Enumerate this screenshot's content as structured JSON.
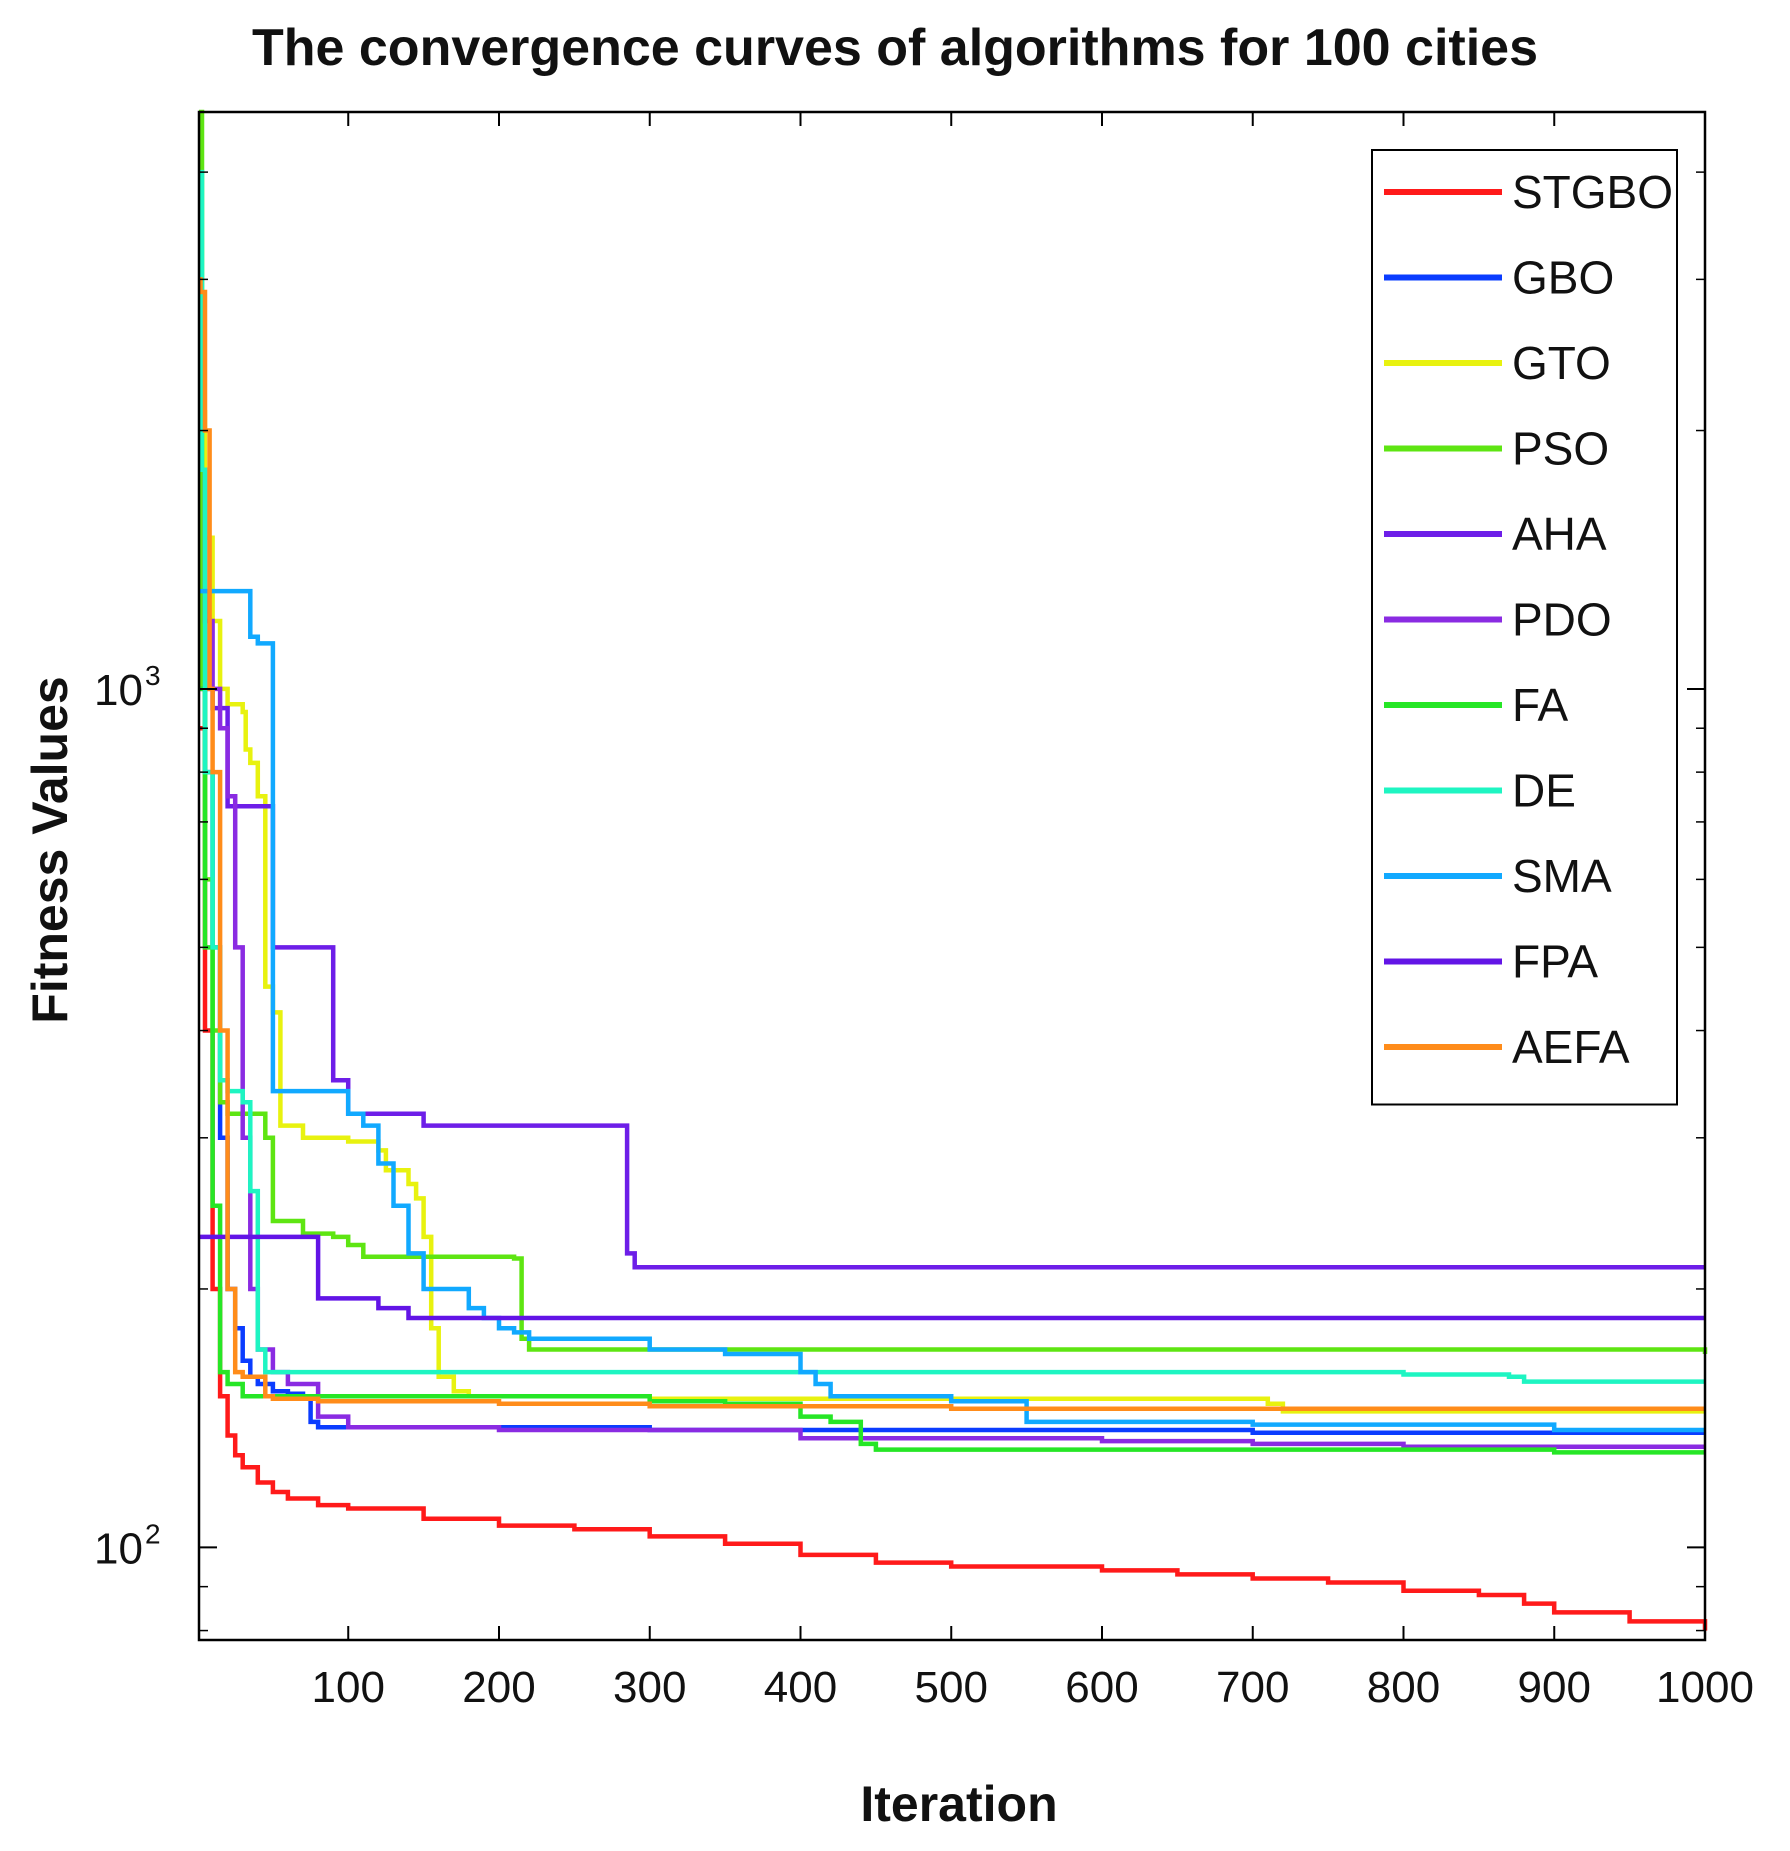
{
  "chart_data": {
    "type": "line",
    "title": "The convergence curves of algorithms for 100 cities",
    "xlabel": "Iteration",
    "ylabel": "Fitness Values",
    "xscale": "linear",
    "yscale": "log",
    "xlim": [
      1,
      1000
    ],
    "ylim": [
      78,
      4700
    ],
    "xticks": [
      100,
      200,
      300,
      400,
      500,
      600,
      700,
      800,
      900,
      1000
    ],
    "xtick_labels": [
      "100",
      "200",
      "300",
      "400",
      "500",
      "600",
      "700",
      "800",
      "900",
      "1000"
    ],
    "yticks": [
      100,
      1000
    ],
    "ytick_labels": [
      {
        "base": "10",
        "exp": "2"
      },
      {
        "base": "10",
        "exp": "3"
      }
    ],
    "grid": false,
    "legend_position": "top-right",
    "series": [
      {
        "name": "STGBO",
        "color": "#ff1a1a",
        "points": [
          [
            1,
            900
          ],
          [
            5,
            400
          ],
          [
            10,
            200
          ],
          [
            15,
            150
          ],
          [
            20,
            135
          ],
          [
            25,
            128
          ],
          [
            30,
            124
          ],
          [
            40,
            119
          ],
          [
            50,
            116
          ],
          [
            60,
            114
          ],
          [
            80,
            112
          ],
          [
            100,
            111
          ],
          [
            150,
            108
          ],
          [
            200,
            106
          ],
          [
            250,
            105
          ],
          [
            300,
            103
          ],
          [
            350,
            101
          ],
          [
            400,
            98
          ],
          [
            450,
            96
          ],
          [
            500,
            95
          ],
          [
            600,
            94
          ],
          [
            650,
            93
          ],
          [
            700,
            92
          ],
          [
            750,
            91
          ],
          [
            800,
            89
          ],
          [
            850,
            88
          ],
          [
            880,
            86
          ],
          [
            900,
            84
          ],
          [
            950,
            82
          ],
          [
            1000,
            80
          ]
        ]
      },
      {
        "name": "GBO",
        "color": "#0a3cff",
        "points": [
          [
            1,
            1300
          ],
          [
            5,
            800
          ],
          [
            10,
            500
          ],
          [
            15,
            300
          ],
          [
            20,
            200
          ],
          [
            25,
            180
          ],
          [
            30,
            165
          ],
          [
            35,
            158
          ],
          [
            40,
            155
          ],
          [
            50,
            152
          ],
          [
            60,
            151
          ],
          [
            70,
            150
          ],
          [
            75,
            140
          ],
          [
            80,
            138
          ],
          [
            100,
            138
          ],
          [
            200,
            138
          ],
          [
            300,
            137
          ],
          [
            500,
            137
          ],
          [
            700,
            136
          ],
          [
            1000,
            136
          ]
        ]
      },
      {
        "name": "GTO",
        "color": "#e8f20f",
        "points": [
          [
            1,
            2100
          ],
          [
            5,
            1500
          ],
          [
            10,
            1200
          ],
          [
            15,
            1000
          ],
          [
            20,
            960
          ],
          [
            25,
            960
          ],
          [
            28,
            960
          ],
          [
            30,
            940
          ],
          [
            32,
            850
          ],
          [
            35,
            820
          ],
          [
            40,
            750
          ],
          [
            45,
            450
          ],
          [
            50,
            420
          ],
          [
            55,
            310
          ],
          [
            70,
            300
          ],
          [
            80,
            300
          ],
          [
            100,
            297
          ],
          [
            120,
            290
          ],
          [
            125,
            275
          ],
          [
            140,
            265
          ],
          [
            145,
            255
          ],
          [
            150,
            230
          ],
          [
            155,
            180
          ],
          [
            160,
            158
          ],
          [
            170,
            152
          ],
          [
            180,
            150
          ],
          [
            300,
            149
          ],
          [
            500,
            149
          ],
          [
            700,
            149
          ],
          [
            710,
            147
          ],
          [
            720,
            144
          ],
          [
            1000,
            144
          ]
        ]
      },
      {
        "name": "PSO",
        "color": "#5ee512",
        "points": [
          [
            1,
            4700
          ],
          [
            3,
            1000
          ],
          [
            5,
            600
          ],
          [
            10,
            400
          ],
          [
            15,
            330
          ],
          [
            20,
            320
          ],
          [
            40,
            320
          ],
          [
            45,
            300
          ],
          [
            50,
            240
          ],
          [
            70,
            232
          ],
          [
            90,
            230
          ],
          [
            100,
            225
          ],
          [
            110,
            218
          ],
          [
            150,
            218
          ],
          [
            200,
            218
          ],
          [
            210,
            217
          ],
          [
            215,
            175
          ],
          [
            220,
            170
          ],
          [
            500,
            170
          ],
          [
            1000,
            168
          ]
        ]
      },
      {
        "name": "AHA",
        "color": "#6d1ee8",
        "points": [
          [
            1,
            1000
          ],
          [
            10,
            950
          ],
          [
            20,
            730
          ],
          [
            30,
            730
          ],
          [
            40,
            730
          ],
          [
            45,
            730
          ],
          [
            50,
            500
          ],
          [
            80,
            500
          ],
          [
            90,
            350
          ],
          [
            100,
            320
          ],
          [
            140,
            320
          ],
          [
            150,
            310
          ],
          [
            200,
            310
          ],
          [
            280,
            310
          ],
          [
            285,
            220
          ],
          [
            290,
            212
          ],
          [
            500,
            212
          ],
          [
            1000,
            212
          ]
        ]
      },
      {
        "name": "PDO",
        "color": "#8a2be2",
        "points": [
          [
            1,
            1800
          ],
          [
            5,
            1200
          ],
          [
            10,
            1000
          ],
          [
            15,
            900
          ],
          [
            20,
            750
          ],
          [
            25,
            500
          ],
          [
            30,
            300
          ],
          [
            35,
            200
          ],
          [
            40,
            170
          ],
          [
            50,
            160
          ],
          [
            60,
            155
          ],
          [
            80,
            142
          ],
          [
            100,
            138
          ],
          [
            200,
            137
          ],
          [
            300,
            137
          ],
          [
            400,
            134
          ],
          [
            500,
            134
          ],
          [
            600,
            133
          ],
          [
            700,
            132
          ],
          [
            800,
            131
          ],
          [
            900,
            131
          ],
          [
            1000,
            131
          ]
        ]
      },
      {
        "name": "FA",
        "color": "#26e626",
        "points": [
          [
            1,
            1000
          ],
          [
            5,
            500
          ],
          [
            10,
            250
          ],
          [
            15,
            160
          ],
          [
            20,
            155
          ],
          [
            30,
            150
          ],
          [
            40,
            150
          ],
          [
            100,
            150
          ],
          [
            200,
            150
          ],
          [
            300,
            148
          ],
          [
            350,
            147
          ],
          [
            400,
            142
          ],
          [
            420,
            140
          ],
          [
            440,
            132
          ],
          [
            450,
            130
          ],
          [
            500,
            130
          ],
          [
            600,
            130
          ],
          [
            700,
            130
          ],
          [
            800,
            130
          ],
          [
            900,
            129
          ],
          [
            1000,
            129
          ]
        ]
      },
      {
        "name": "DE",
        "color": "#1ef5c2",
        "points": [
          [
            1,
            4000
          ],
          [
            3,
            1800
          ],
          [
            5,
            800
          ],
          [
            10,
            500
          ],
          [
            15,
            350
          ],
          [
            20,
            340
          ],
          [
            25,
            340
          ],
          [
            30,
            330
          ],
          [
            35,
            260
          ],
          [
            40,
            170
          ],
          [
            45,
            160
          ],
          [
            50,
            160
          ],
          [
            100,
            160
          ],
          [
            200,
            160
          ],
          [
            500,
            160
          ],
          [
            800,
            159
          ],
          [
            870,
            158
          ],
          [
            880,
            156
          ],
          [
            1000,
            156
          ]
        ]
      },
      {
        "name": "SMA",
        "color": "#11a9ff",
        "points": [
          [
            1,
            1300
          ],
          [
            10,
            1300
          ],
          [
            20,
            1300
          ],
          [
            30,
            1300
          ],
          [
            35,
            1150
          ],
          [
            40,
            1130
          ],
          [
            45,
            1130
          ],
          [
            48,
            1130
          ],
          [
            50,
            340
          ],
          [
            80,
            340
          ],
          [
            100,
            320
          ],
          [
            110,
            310
          ],
          [
            120,
            280
          ],
          [
            130,
            250
          ],
          [
            140,
            220
          ],
          [
            150,
            200
          ],
          [
            180,
            190
          ],
          [
            190,
            185
          ],
          [
            200,
            180
          ],
          [
            210,
            178
          ],
          [
            220,
            175
          ],
          [
            250,
            175
          ],
          [
            300,
            170
          ],
          [
            350,
            168
          ],
          [
            400,
            160
          ],
          [
            410,
            155
          ],
          [
            420,
            150
          ],
          [
            480,
            150
          ],
          [
            500,
            148
          ],
          [
            550,
            140
          ],
          [
            600,
            140
          ],
          [
            700,
            139
          ],
          [
            800,
            139
          ],
          [
            900,
            137
          ],
          [
            1000,
            137
          ]
        ]
      },
      {
        "name": "FPA",
        "color": "#6214e6",
        "points": [
          [
            1,
            230
          ],
          [
            10,
            230
          ],
          [
            20,
            230
          ],
          [
            30,
            230
          ],
          [
            60,
            230
          ],
          [
            75,
            230
          ],
          [
            80,
            195
          ],
          [
            100,
            195
          ],
          [
            120,
            190
          ],
          [
            140,
            185
          ],
          [
            160,
            185
          ],
          [
            300,
            185
          ],
          [
            500,
            185
          ],
          [
            1000,
            185
          ]
        ]
      },
      {
        "name": "AEFA",
        "color": "#ff8c1a",
        "points": [
          [
            1,
            3000
          ],
          [
            2,
            2900
          ],
          [
            5,
            2000
          ],
          [
            8,
            1000
          ],
          [
            10,
            800
          ],
          [
            15,
            400
          ],
          [
            20,
            200
          ],
          [
            25,
            160
          ],
          [
            30,
            158
          ],
          [
            40,
            158
          ],
          [
            42,
            158
          ],
          [
            45,
            150
          ],
          [
            50,
            149
          ],
          [
            60,
            149
          ],
          [
            80,
            148
          ],
          [
            100,
            148
          ],
          [
            150,
            148
          ],
          [
            200,
            147
          ],
          [
            300,
            146
          ],
          [
            500,
            145
          ],
          [
            700,
            145
          ],
          [
            1000,
            145
          ]
        ]
      }
    ]
  }
}
